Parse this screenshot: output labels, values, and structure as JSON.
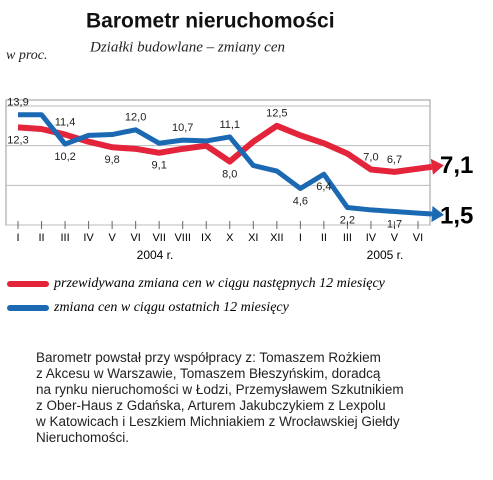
{
  "chart_data": {
    "type": "line",
    "title": "Barometr nieruchomości",
    "subtitle": "Działki budowlane – zmiany cen",
    "y_label": "w proc.",
    "categories": [
      "I",
      "II",
      "III",
      "IV",
      "V",
      "VI",
      "VII",
      "VIII",
      "IX",
      "X",
      "XI",
      "XII",
      "I",
      "II",
      "III",
      "IV",
      "V",
      "VI"
    ],
    "year_labels": [
      "2004 r.",
      "2005 r."
    ],
    "ylim": [
      0,
      15
    ],
    "yticks": [
      0,
      5,
      10,
      15
    ],
    "grid": true,
    "series": [
      {
        "name": "przewidywana zmiana cen w ciągu następnych 12 miesięcy",
        "color": "#e3243b",
        "values": [
          12.3,
          12.1,
          11.4,
          10.5,
          9.8,
          9.6,
          9.1,
          9.6,
          10.0,
          8.0,
          10.5,
          12.5,
          11.3,
          10.3,
          9.0,
          7.0,
          6.7,
          7.1
        ],
        "value_labels": [
          "12,3",
          null,
          "11,4",
          null,
          "9,8",
          null,
          "9,1",
          null,
          null,
          "8,0",
          null,
          "12,5",
          null,
          null,
          null,
          "7,0",
          "6,7",
          "7,1"
        ]
      },
      {
        "name": "zmiana cen w ciągu ostatnich 12 miesięcy",
        "color": "#1c69b3",
        "values": [
          13.9,
          13.9,
          10.2,
          11.3,
          11.4,
          12.0,
          10.3,
          10.7,
          10.6,
          11.1,
          7.5,
          6.8,
          4.6,
          6.4,
          2.2,
          1.9,
          1.7,
          1.5
        ],
        "value_labels": [
          "13,9",
          null,
          "10,2",
          null,
          null,
          "12,0",
          null,
          "10,7",
          null,
          "11,1",
          null,
          null,
          "4,6",
          "6,4",
          "2,2",
          null,
          "1,7",
          "1,5"
        ]
      }
    ]
  },
  "footnote": [
    "Barometr powstał przy współpracy z: Tomaszem Rożkiem",
    "z Akcesu w Warszawie, Tomaszem Błeszyńskim, doradcą",
    "na rynku nieruchomości w Łodzi, Przemysławem Szkutnikiem",
    "z Ober-Haus z Gdańska, Arturem Jakubczykiem z Lexpolu",
    "w Katowicach i Leszkiem Michniakiem z Wrocławskiej Giełdy",
    "Nieruchomości."
  ]
}
